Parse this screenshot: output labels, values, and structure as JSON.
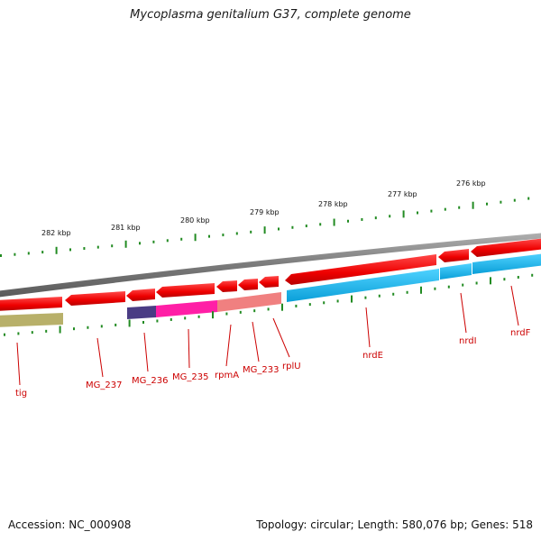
{
  "title": "Mycoplasma genitalium G37, complete genome",
  "footer": {
    "accession": "Accession: NC_000908",
    "summary": "Topology: circular; Length: 580,076 bp; Genes: 518"
  },
  "ruler": {
    "labels": [
      "282 kbp",
      "281 kbp",
      "280 kbp",
      "279 kbp",
      "278 kbp",
      "277 kbp",
      "276 kbp"
    ],
    "tick_color": "#228b22"
  },
  "genes": {
    "labels": [
      "tig",
      "MG_237",
      "MG_236",
      "MG_235",
      "rpmA",
      "MG_233",
      "rplU",
      "nrdE",
      "nrdI",
      "nrdF"
    ],
    "label_color": "#cc0000"
  },
  "colors": {
    "backbone": "#808080",
    "cds_arrow": "#ff0000",
    "cog_olive": "#b8b06a",
    "cog_navy": "#4a3c84",
    "cog_magenta": "#ff1fa6",
    "cog_salmon": "#f08080",
    "cog_cyan": "#18b8ee"
  }
}
